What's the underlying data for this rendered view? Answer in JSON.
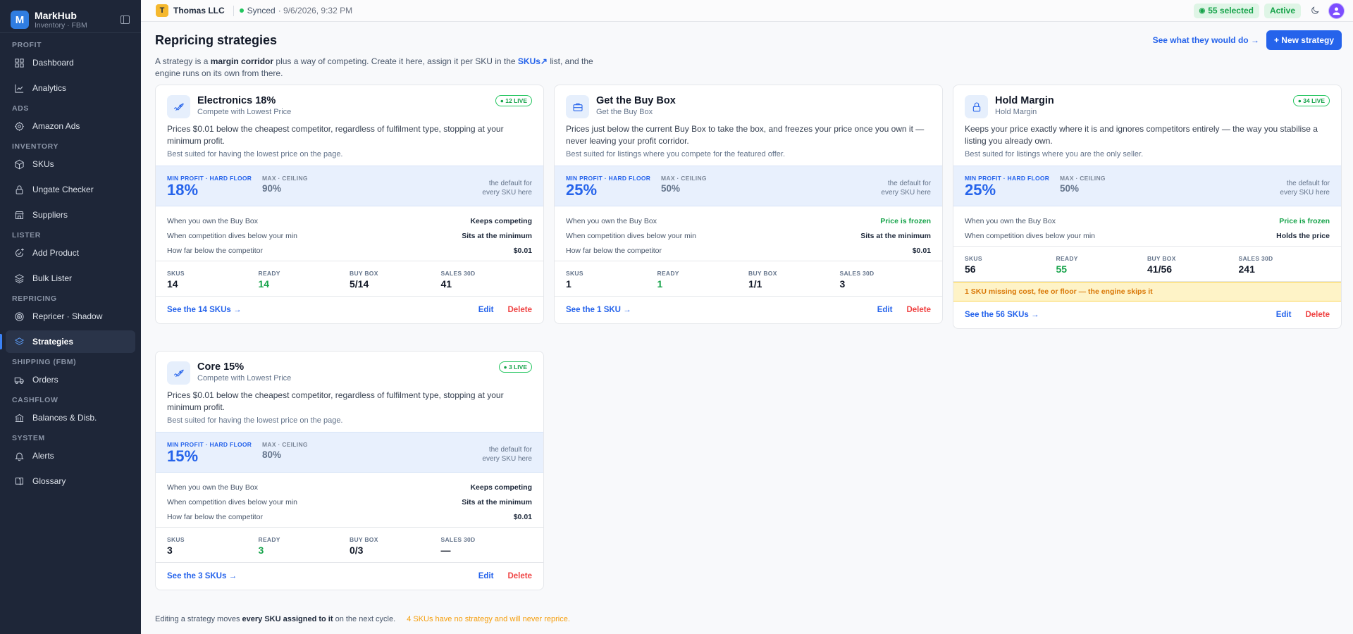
{
  "app": {
    "name": "MarkHub",
    "subtitle": "Inventory · FBM",
    "logo_letter": "M"
  },
  "sidebar": {
    "sections": [
      {
        "label": "PROFIT",
        "items": [
          {
            "label": "Dashboard",
            "icon": "grid-icon"
          },
          {
            "label": "Analytics",
            "icon": "chart-icon"
          }
        ]
      },
      {
        "label": "ADS",
        "items": [
          {
            "label": "Amazon Ads",
            "icon": "target-icon"
          }
        ]
      },
      {
        "label": "INVENTORY",
        "items": [
          {
            "label": "SKUs",
            "icon": "box-icon"
          },
          {
            "label": "Ungate Checker",
            "icon": "lock-icon"
          },
          {
            "label": "Suppliers",
            "icon": "store-icon"
          }
        ]
      },
      {
        "label": "LISTER",
        "items": [
          {
            "label": "Add Product",
            "icon": "add-product-icon"
          },
          {
            "label": "Bulk Lister",
            "icon": "layers-icon"
          }
        ]
      },
      {
        "label": "REPRICING",
        "items": [
          {
            "label": "Repricer · Shadow",
            "icon": "radar-icon"
          },
          {
            "label": "Strategies",
            "icon": "strategies-icon",
            "active": true
          }
        ]
      },
      {
        "label": "SHIPPING (FBM)",
        "items": [
          {
            "label": "Orders",
            "icon": "truck-icon"
          }
        ]
      },
      {
        "label": "CASHFLOW",
        "items": [
          {
            "label": "Balances & Disb.",
            "icon": "bank-icon"
          }
        ]
      },
      {
        "label": "SYSTEM",
        "items": [
          {
            "label": "Alerts",
            "icon": "bell-icon"
          },
          {
            "label": "Glossary",
            "icon": "book-icon"
          }
        ]
      }
    ]
  },
  "topbar": {
    "org_letter": "T",
    "org_name": "Thomas LLC",
    "sync_status": "Synced",
    "sync_time": "· 9/6/2026, 9:32 PM",
    "selected": "55 selected",
    "status": "Active"
  },
  "page": {
    "title": "Repricing strategies",
    "see_link": "See what they would do →",
    "new_button": "+ New strategy",
    "intro_1": "A strategy is a ",
    "intro_bold": "margin corridor",
    "intro_2": " plus a way of competing. Create it here, assign it per SKU in the ",
    "intro_link": "SKUs↗",
    "intro_3": " list, and the engine runs on its own from there."
  },
  "labels": {
    "min_profit": "MIN PROFIT · HARD FLOOR",
    "max_ceiling": "MAX · CEILING",
    "default_1": "the default for",
    "default_2": "every SKU here",
    "skus": "SKUS",
    "ready": "READY",
    "buy_box": "BUY BOX",
    "sales": "SALES 30D",
    "edit": "Edit",
    "delete": "Delete"
  },
  "strategies": [
    {
      "name": "Electronics 18%",
      "mode": "Compete with Lowest Price",
      "icon": "rocket-icon",
      "live": "● 12 LIVE",
      "description": "Prices $0.01 below the cheapest competitor, regardless of fulfilment type, stopping at your minimum profit.",
      "best": "Best suited for having the lowest price on the page.",
      "min": "18%",
      "max": "90%",
      "rules": [
        {
          "k": "When you own the Buy Box",
          "v": "Keeps competing"
        },
        {
          "k": "When competition dives below your min",
          "v": "Sits at the minimum"
        },
        {
          "k": "How far below the competitor",
          "v": "$0.01"
        }
      ],
      "skus": "14",
      "ready": "14",
      "buybox": "5/14",
      "sales": "41",
      "see": "See the 14 SKUs →"
    },
    {
      "name": "Get the Buy Box",
      "mode": "Get the Buy Box",
      "icon": "briefcase-icon",
      "live": "",
      "description": "Prices just below the current Buy Box to take the box, and freezes your price once you own it — never leaving your profit corridor.",
      "best": "Best suited for listings where you compete for the featured offer.",
      "min": "25%",
      "max": "50%",
      "rules": [
        {
          "k": "When you own the Buy Box",
          "v": "Price is frozen",
          "green": true
        },
        {
          "k": "When competition dives below your min",
          "v": "Sits at the minimum"
        },
        {
          "k": "How far below the competitor",
          "v": "$0.01"
        }
      ],
      "skus": "1",
      "ready": "1",
      "buybox": "1/1",
      "sales": "3",
      "see": "See the 1 SKU →"
    },
    {
      "name": "Hold Margin",
      "mode": "Hold Margin",
      "icon": "lock-icon",
      "live": "● 34 LIVE",
      "description": "Keeps your price exactly where it is and ignores competitors entirely — the way you stabilise a listing you already own.",
      "best": "Best suited for listings where you are the only seller.",
      "min": "25%",
      "max": "50%",
      "rules": [
        {
          "k": "When you own the Buy Box",
          "v": "Price is frozen",
          "green": true
        },
        {
          "k": "When competition dives below your min",
          "v": "Holds the price"
        }
      ],
      "skus": "56",
      "ready": "55",
      "buybox": "41/56",
      "sales": "241",
      "warning": "1 SKU missing cost, fee or floor — the engine skips it",
      "see": "See the 56 SKUs →"
    },
    {
      "name": "Core 15%",
      "mode": "Compete with Lowest Price",
      "icon": "rocket-icon",
      "live": "● 3 LIVE",
      "description": "Prices $0.01 below the cheapest competitor, regardless of fulfilment type, stopping at your minimum profit.",
      "best": "Best suited for having the lowest price on the page.",
      "min": "15%",
      "max": "80%",
      "rules": [
        {
          "k": "When you own the Buy Box",
          "v": "Keeps competing"
        },
        {
          "k": "When competition dives below your min",
          "v": "Sits at the minimum"
        },
        {
          "k": "How far below the competitor",
          "v": "$0.01"
        }
      ],
      "skus": "3",
      "ready": "3",
      "buybox": "0/3",
      "sales": "—",
      "see": "See the 3 SKUs →"
    }
  ],
  "footer": {
    "note_1": "Editing a strategy moves ",
    "note_bold": "every SKU assigned to it",
    "note_2": " on the next cycle.",
    "warn": "4 SKUs have no strategy and will never reprice."
  }
}
